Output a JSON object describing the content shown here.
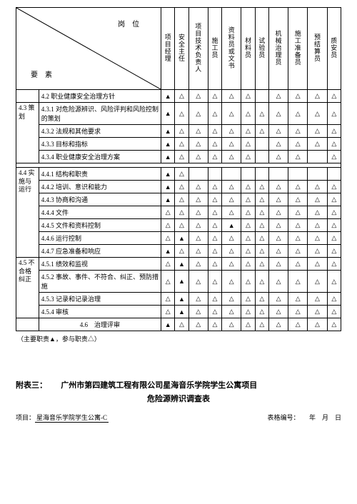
{
  "header": {
    "diag_top": "岗　位",
    "diag_bottom": "要　素",
    "cols": [
      "项目经理",
      "安全主任",
      "项目技术负责人",
      "施工员",
      "资料员或文书",
      "材料员",
      "试验员",
      "机械治理员",
      "施工准备员",
      "预结算员",
      "质安员"
    ]
  },
  "rows": [
    {
      "leftspan": "",
      "left": "",
      "code": "4.2 职业健康安全治理方针",
      "sym": [
        "▲",
        "△",
        "△",
        "△",
        "△",
        "△",
        "",
        "△",
        "△",
        "△",
        "△"
      ]
    },
    {
      "group": "4.3 策　划",
      "groupRows": 4,
      "code": "4.3.1 对危险源辨识、风险评判和风险控制的策划",
      "sym": [
        "▲",
        "△",
        "△",
        "△",
        "△",
        "△",
        "△",
        "△",
        "△",
        "△",
        "△"
      ]
    },
    {
      "code": "4.3.2 法规和其他要求",
      "sym": [
        "▲",
        "△",
        "△",
        "△",
        "△",
        "△",
        "△",
        "△",
        "△",
        "△",
        "△"
      ]
    },
    {
      "code": "4.3.3 目标和指标",
      "sym": [
        "▲",
        "△",
        "△",
        "△",
        "△",
        "△",
        "",
        "△",
        "△",
        "△",
        "△"
      ]
    },
    {
      "code": "4.3.4 职业健康安全治理方案",
      "sym": [
        "▲",
        "△",
        "△",
        "△",
        "△",
        "△",
        "",
        "△",
        "△",
        "",
        "△"
      ]
    },
    {
      "sep": true
    },
    {
      "group": "4.4 实施与运行",
      "groupRows": 7,
      "code": "4.4.1 结构和职责",
      "sym": [
        "▲",
        "△",
        "",
        "",
        "",
        "",
        "",
        "",
        "",
        "",
        ""
      ]
    },
    {
      "code": "4.4.2 培训、意识和能力",
      "sym": [
        "▲",
        "△",
        "△",
        "△",
        "△",
        "△",
        "△",
        "△",
        "△",
        "△",
        "△"
      ]
    },
    {
      "code": "4.4.3 协商和沟通",
      "sym": [
        "▲",
        "△",
        "△",
        "△",
        "△",
        "△",
        "△",
        "△",
        "△",
        "△",
        "△"
      ]
    },
    {
      "code": "4.4.4 文件",
      "sym": [
        "△",
        "△",
        "△",
        "△",
        "△",
        "△",
        "△",
        "△",
        "△",
        "△",
        "△"
      ]
    },
    {
      "code": "4.4.5 文件和资料控制",
      "sym": [
        "△",
        "△",
        "△",
        "△",
        "▲",
        "△",
        "△",
        "△",
        "△",
        "△",
        "△"
      ]
    },
    {
      "code": "4.4.6 运行控制",
      "sym": [
        "△",
        "▲",
        "△",
        "△",
        "△",
        "△",
        "△",
        "△",
        "△",
        "△",
        "△"
      ]
    },
    {
      "code": "4.4.7 应急准备和响应",
      "sym": [
        "▲",
        "△",
        "△",
        "△",
        "△",
        "△",
        "△",
        "△",
        "△",
        "△",
        "△"
      ]
    },
    {
      "group": "4.5 不合格纠正",
      "groupRows": 4,
      "code": "4.5.1 绩效和监视",
      "sym": [
        "△",
        "▲",
        "△",
        "△",
        "△",
        "△",
        "△",
        "△",
        "△",
        "△",
        "△"
      ]
    },
    {
      "code": "4.5.2 事故、事件、不符合、纠正、预防措施",
      "sym": [
        "△",
        "▲",
        "△",
        "△",
        "△",
        "△",
        "△",
        "△",
        "△",
        "△",
        "△"
      ]
    },
    {
      "code": "4.5.3 记录和记录治理",
      "sym": [
        "△",
        "▲",
        "△",
        "△",
        "△",
        "△",
        "△",
        "△",
        "△",
        "△",
        "△"
      ]
    },
    {
      "code": "4.5.4 审核",
      "sym": [
        "△",
        "▲",
        "△",
        "△",
        "△",
        "△",
        "△",
        "△",
        "△",
        "△",
        "△"
      ]
    },
    {
      "leftspan": "",
      "left": "",
      "code": "4.6　治理评审",
      "center": true,
      "sym": [
        "▲",
        "△",
        "△",
        "△",
        "△",
        "△",
        "△",
        "△",
        "△",
        "△",
        "△"
      ]
    }
  ],
  "note": "（主要职责▲，参与职责△）",
  "appendix": {
    "label": "附表三：",
    "title": " 广州市第四建筑工程有限公司星海音乐学院学生公寓项目",
    "subtitle": "危险源辨识调查表",
    "project_label": "项目：",
    "project_value": "星海音乐学院学生公寓-C",
    "form_label": "表格编号：",
    "date_label": "年　月　日"
  }
}
